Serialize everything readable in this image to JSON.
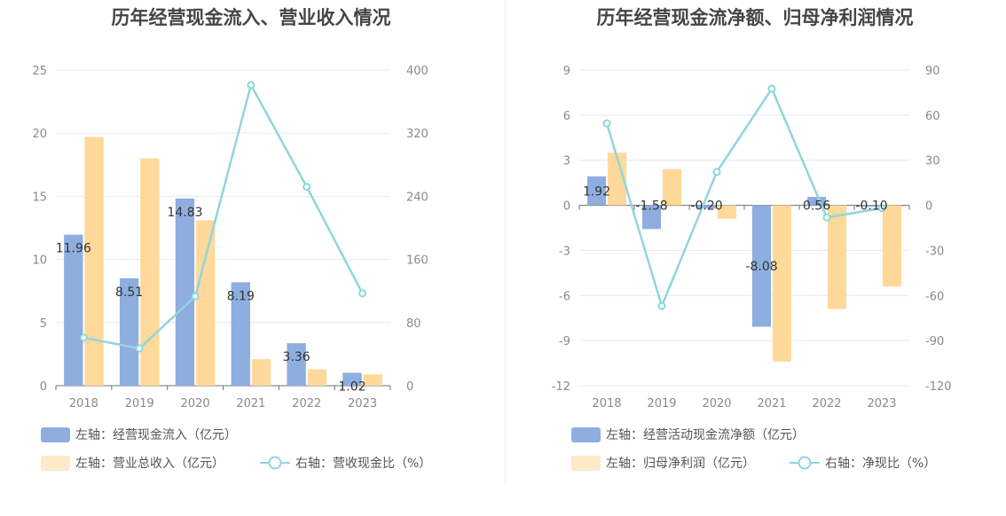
{
  "colors": {
    "blue": "#8eaee0",
    "orange": "#ffd99a",
    "line": "#8fd6dc",
    "grid": "#e6e8f0",
    "axis": "#8a8a8a"
  },
  "chart_data": [
    {
      "type": "bar",
      "title": "历年经营现金流入、营业收入情况",
      "categories": [
        "2018",
        "2019",
        "2020",
        "2021",
        "2022",
        "2023"
      ],
      "left_ticks": [
        "25",
        "20",
        "15",
        "10",
        "5",
        "0"
      ],
      "right_ticks": [
        "400",
        "320",
        "240",
        "160",
        "80",
        "0"
      ],
      "ylim": [
        0,
        25
      ],
      "y2lim": [
        0,
        400
      ],
      "grid": true,
      "legend_position": "bottom",
      "series": [
        {
          "name": "左轴：经营现金流入（亿元）",
          "axis": "left",
          "kind": "bar",
          "values": [
            11.96,
            8.51,
            14.83,
            8.19,
            3.36,
            1.02
          ],
          "labels": [
            "11.96",
            "8.51",
            "14.83",
            "8.19",
            "3.36",
            "1.02"
          ]
        },
        {
          "name": "左轴：营业总收入（亿元）",
          "axis": "left",
          "kind": "bar",
          "values": [
            19.7,
            18.0,
            13.1,
            2.1,
            1.3,
            0.9
          ]
        },
        {
          "name": "右轴：营收现金比（%）",
          "axis": "right",
          "kind": "line",
          "values": [
            60.7,
            47.2,
            113.2,
            381.0,
            252.0,
            117.0
          ]
        }
      ]
    },
    {
      "type": "bar",
      "title": "历年经营现金流净额、归母净利润情况",
      "categories": [
        "2018",
        "2019",
        "2020",
        "2021",
        "2022",
        "2023"
      ],
      "left_ticks": [
        "9",
        "6",
        "3",
        "0",
        "-3",
        "-6",
        "-9",
        "-12"
      ],
      "right_ticks": [
        "90",
        "60",
        "30",
        "0",
        "-30",
        "-60",
        "-90",
        "-120"
      ],
      "ylim": [
        -12,
        9
      ],
      "y2lim": [
        -120,
        90
      ],
      "grid": true,
      "legend_position": "bottom",
      "series": [
        {
          "name": "左轴：经营活动现金流净额（亿元）",
          "axis": "left",
          "kind": "bar",
          "values": [
            1.92,
            -1.58,
            -0.2,
            -8.08,
            0.56,
            -0.1
          ],
          "labels": [
            "1.92",
            "-1.58",
            "-0.20",
            "-8.08",
            "0.56",
            "-0.10"
          ]
        },
        {
          "name": "左轴：归母净利润（亿元）",
          "axis": "left",
          "kind": "bar",
          "values": [
            3.5,
            2.4,
            -0.9,
            -10.4,
            -6.9,
            -5.4
          ]
        },
        {
          "name": "右轴：净现比（%）",
          "axis": "right",
          "kind": "line",
          "values": [
            54.5,
            -67.0,
            22.2,
            77.6,
            -8.1,
            -1.9
          ]
        }
      ]
    }
  ]
}
